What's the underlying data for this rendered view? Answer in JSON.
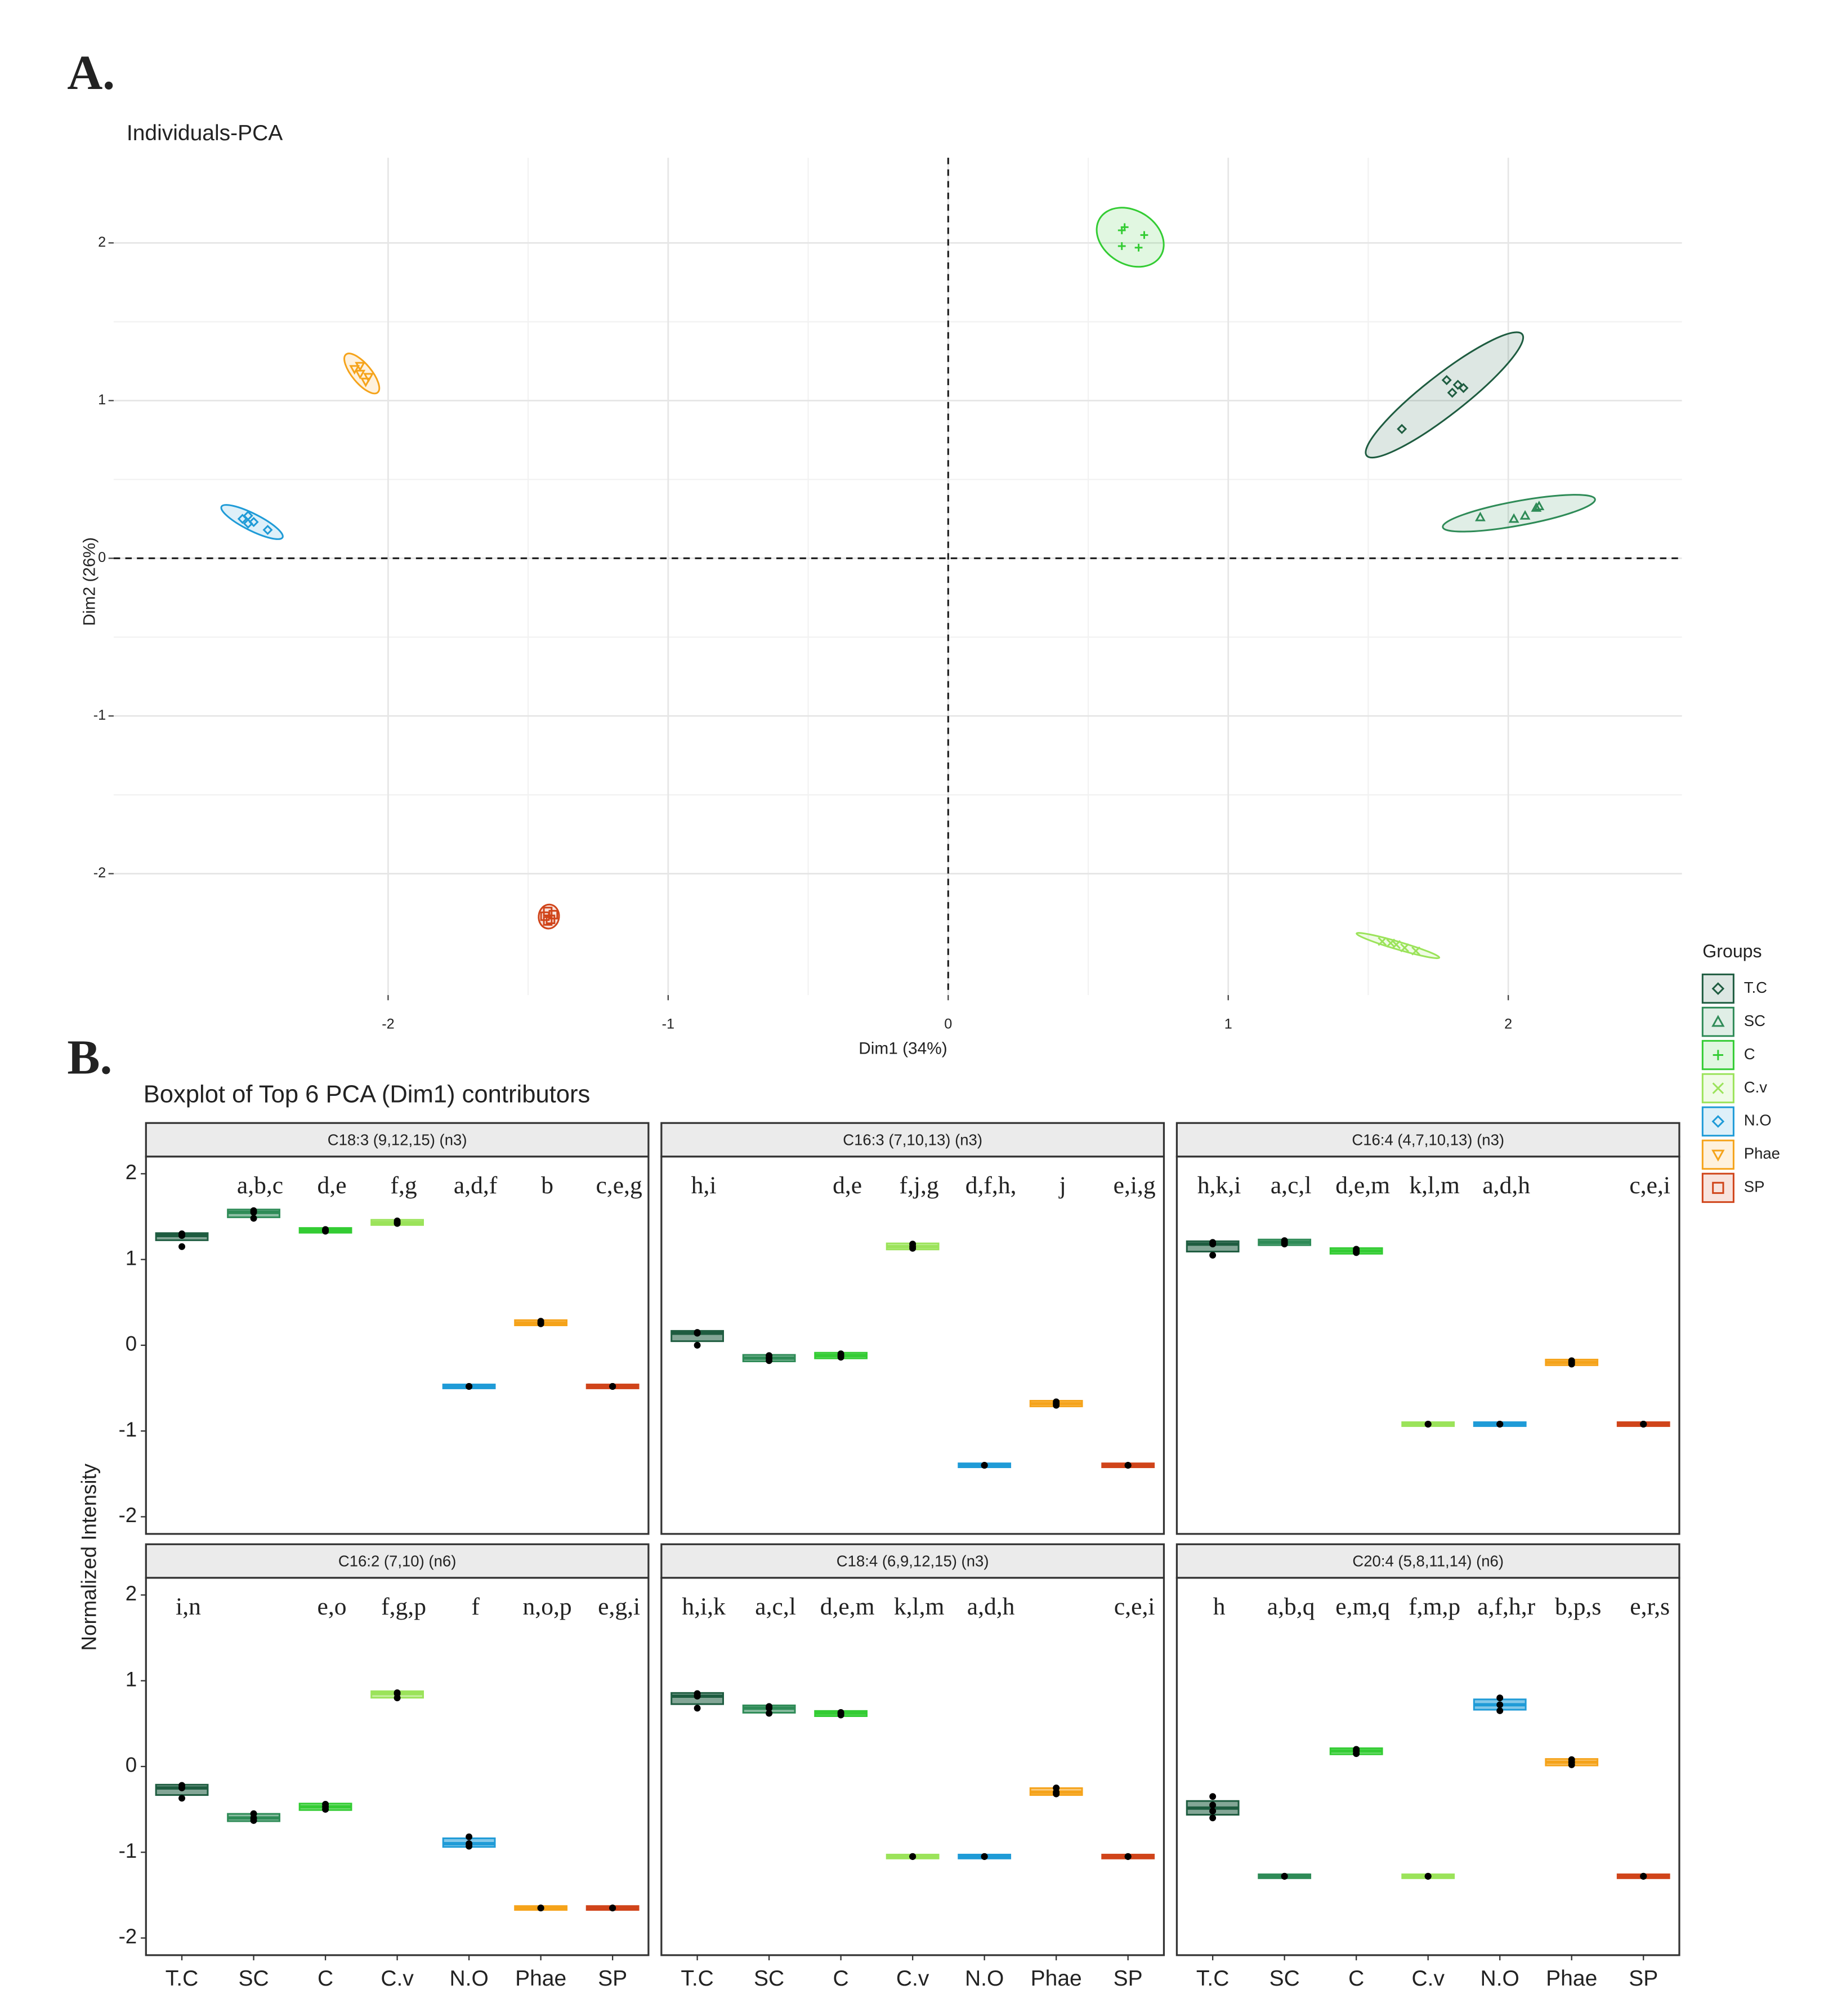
{
  "panel_labels": [
    "A.",
    "B."
  ],
  "chart_data": [
    {
      "type": "scatter",
      "title": "Individuals-PCA",
      "xlabel": "Dim1 (34%)",
      "ylabel": "Dim2 (26%)",
      "xlim": [
        -2.98,
        2.62
      ],
      "ylim": [
        -2.77,
        2.54
      ],
      "xticks": [
        -2,
        -1,
        0,
        1,
        2
      ],
      "yticks": [
        -2,
        -1,
        0,
        1,
        2
      ],
      "grid": true,
      "legend": {
        "title": "Groups",
        "position": "right"
      },
      "series": [
        {
          "name": "T.C",
          "color": "#1e5c40",
          "marker": "diamond",
          "x": [
            1.62,
            1.8,
            1.82,
            1.84,
            1.78
          ],
          "y": [
            0.82,
            1.05,
            1.1,
            1.08,
            1.13
          ]
        },
        {
          "name": "SC",
          "color": "#2e8b57",
          "marker": "triangle",
          "x": [
            1.9,
            2.02,
            2.06,
            2.1,
            2.11
          ],
          "y": [
            0.26,
            0.25,
            0.27,
            0.32,
            0.33
          ]
        },
        {
          "name": "C",
          "color": "#33cc33",
          "marker": "plus",
          "x": [
            0.62,
            0.63,
            0.62,
            0.68,
            0.7
          ],
          "y": [
            2.08,
            2.1,
            1.98,
            1.97,
            2.05
          ]
        },
        {
          "name": "C.v",
          "color": "#9be35a",
          "marker": "cross",
          "x": [
            1.55,
            1.6,
            1.63,
            1.67,
            1.58
          ],
          "y": [
            -2.43,
            -2.45,
            -2.47,
            -2.49,
            -2.44
          ]
        },
        {
          "name": "N.O",
          "color": "#1f9bd7",
          "marker": "diamond",
          "x": [
            -2.52,
            -2.5,
            -2.48,
            -2.43,
            -2.5
          ],
          "y": [
            0.25,
            0.22,
            0.23,
            0.18,
            0.27
          ]
        },
        {
          "name": "Phae",
          "color": "#f5a31a",
          "marker": "triangle-down",
          "x": [
            -2.12,
            -2.1,
            -2.08,
            -2.07,
            -2.1
          ],
          "y": [
            1.2,
            1.17,
            1.12,
            1.15,
            1.22
          ]
        },
        {
          "name": "SP",
          "color": "#d0441a",
          "marker": "square",
          "x": [
            -1.44,
            -1.42,
            -1.43,
            -1.41,
            -1.43
          ],
          "y": [
            -2.27,
            -2.29,
            -2.24,
            -2.26,
            -2.3
          ]
        }
      ]
    },
    {
      "type": "box",
      "title": "Boxplot of Top 6 PCA (Dim1) contributors",
      "ylabel": "Normalized Intensity",
      "categories": [
        "T.C",
        "SC",
        "C",
        "C.v",
        "N.O",
        "Phae",
        "SP"
      ],
      "colors": [
        "#1e5c40",
        "#2e8b57",
        "#33cc33",
        "#9be35a",
        "#1f9bd7",
        "#f5a31a",
        "#d0441a"
      ],
      "ylim": [
        -2.2,
        2.2
      ],
      "yticks": [
        -2,
        -1,
        0,
        1,
        2
      ],
      "facets": [
        {
          "title": "C18:3 (9,12,15) (n3)",
          "letters": [
            null,
            "a,b,c",
            "d,e",
            "f,g",
            "a,d,f",
            "b",
            "c,e,g"
          ],
          "values": [
            [
              1.28,
              1.3,
              1.15,
              1.28
            ],
            [
              1.55,
              1.57,
              1.48
            ],
            [
              1.33,
              1.35,
              1.34
            ],
            [
              1.42,
              1.45,
              1.43
            ],
            [
              -0.48,
              -0.48,
              -0.48
            ],
            [
              0.26,
              0.28,
              0.25
            ],
            [
              -0.48,
              -0.48,
              -0.48
            ]
          ]
        },
        {
          "title": "C16:3 (7,10,13) (n3)",
          "letters": [
            "h,i",
            null,
            "d,e",
            "f,j,g",
            "d,f,h,",
            "j",
            "e,i,g"
          ],
          "values": [
            [
              0.15,
              0.14,
              0.0
            ],
            [
              -0.12,
              -0.18,
              -0.15
            ],
            [
              -0.1,
              -0.12,
              -0.14
            ],
            [
              1.15,
              1.18,
              1.13
            ],
            [
              -1.4,
              -1.4,
              -1.4
            ],
            [
              -0.66,
              -0.7,
              -0.68
            ],
            [
              -1.4,
              -1.4,
              -1.4
            ]
          ]
        },
        {
          "title": "C16:4 (4,7,10,13) (n3)",
          "letters": [
            "h,k,i",
            "a,c,l",
            "d,e,m",
            "k,l,m",
            "a,d,h",
            null,
            "c,e,i"
          ],
          "values": [
            [
              1.18,
              1.2,
              1.05
            ],
            [
              1.18,
              1.22,
              1.2
            ],
            [
              1.1,
              1.12,
              1.08
            ],
            [
              -0.92,
              -0.92,
              -0.92
            ],
            [
              -0.92,
              -0.92,
              -0.92
            ],
            [
              -0.2,
              -0.22,
              -0.18
            ],
            [
              -0.92,
              -0.92,
              -0.92
            ]
          ]
        },
        {
          "title": "C16:2 (7,10) (n6)",
          "letters": [
            "i,n",
            null,
            "e,o",
            "f,g,p",
            "f",
            "n,o,p",
            "e,g,i"
          ],
          "values": [
            [
              -0.22,
              -0.25,
              -0.37
            ],
            [
              -0.55,
              -0.6,
              -0.63
            ],
            [
              -0.44,
              -0.47,
              -0.5
            ],
            [
              0.85,
              0.86,
              0.8
            ],
            [
              -0.82,
              -0.9,
              -0.93
            ],
            [
              -1.65,
              -1.65,
              -1.65
            ],
            [
              -1.65,
              -1.65,
              -1.65
            ]
          ]
        },
        {
          "title": "C18:4 (6,9,12,15) (n3)",
          "letters": [
            "h,i,k",
            "a,c,l",
            "d,e,m",
            "k,l,m",
            "a,d,h",
            null,
            "c,e,i"
          ],
          "values": [
            [
              0.85,
              0.82,
              0.68
            ],
            [
              0.7,
              0.68,
              0.62
            ],
            [
              0.62,
              0.6,
              0.63
            ],
            [
              -1.05,
              -1.05,
              -1.05
            ],
            [
              -1.05,
              -1.05,
              -1.05
            ],
            [
              -0.25,
              -0.32,
              -0.3
            ],
            [
              -1.05,
              -1.05,
              -1.05
            ]
          ]
        },
        {
          "title": "C20:4 (5,8,11,14) (n6)",
          "letters": [
            "h",
            "a,b,q",
            "e,m,q",
            "f,m,p",
            "a,f,h,r",
            "b,p,s",
            "e,r,s"
          ],
          "values": [
            [
              -0.35,
              -0.45,
              -0.52,
              -0.6
            ],
            [
              -1.28,
              -1.28,
              -1.28
            ],
            [
              0.15,
              0.2,
              0.18
            ],
            [
              -1.28,
              -1.28,
              -1.28
            ],
            [
              0.8,
              0.72,
              0.65
            ],
            [
              0.05,
              0.08,
              0.02
            ],
            [
              -1.28,
              -1.28,
              -1.28
            ]
          ]
        }
      ]
    }
  ]
}
